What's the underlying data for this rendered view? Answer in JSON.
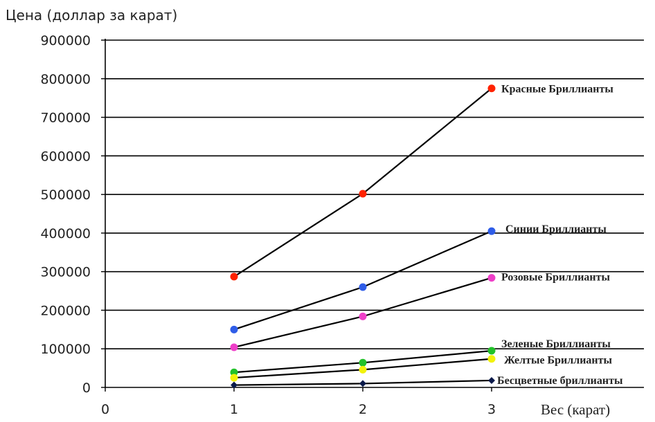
{
  "chart_data": {
    "type": "line",
    "ylabel": "Цена (доллар за карат)",
    "xlabel": "Вес (карат)",
    "xlim": [
      0,
      3
    ],
    "ylim": [
      0,
      900000
    ],
    "x_ticks": [
      0,
      1,
      2,
      3
    ],
    "y_ticks": [
      0,
      100000,
      200000,
      300000,
      400000,
      500000,
      600000,
      700000,
      800000,
      900000
    ],
    "grid": "horizontal",
    "x": [
      1,
      2,
      3
    ],
    "series": [
      {
        "name": "Красные Бриллианты",
        "values": [
          287000,
          502000,
          775000
        ],
        "color": "#ff2200",
        "marker": "circle"
      },
      {
        "name": "Синии Бриллианты",
        "values": [
          150000,
          260000,
          405000
        ],
        "color": "#2f5de8",
        "marker": "circle"
      },
      {
        "name": "Розовые Бриллианты",
        "values": [
          104000,
          184000,
          284000
        ],
        "color": "#ee3fc8",
        "marker": "circle"
      },
      {
        "name": "Зеленые Бриллианты",
        "values": [
          39000,
          64000,
          95000
        ],
        "color": "#22c22a",
        "marker": "circle"
      },
      {
        "name": "Желтые Бриллианты",
        "values": [
          25000,
          46000,
          74000
        ],
        "color": "#f2f20a",
        "marker": "circle"
      },
      {
        "name": "Бесцветные бриллианты",
        "values": [
          6000,
          10000,
          18000
        ],
        "color": "#0a1a4a",
        "marker": "diamond"
      }
    ]
  }
}
